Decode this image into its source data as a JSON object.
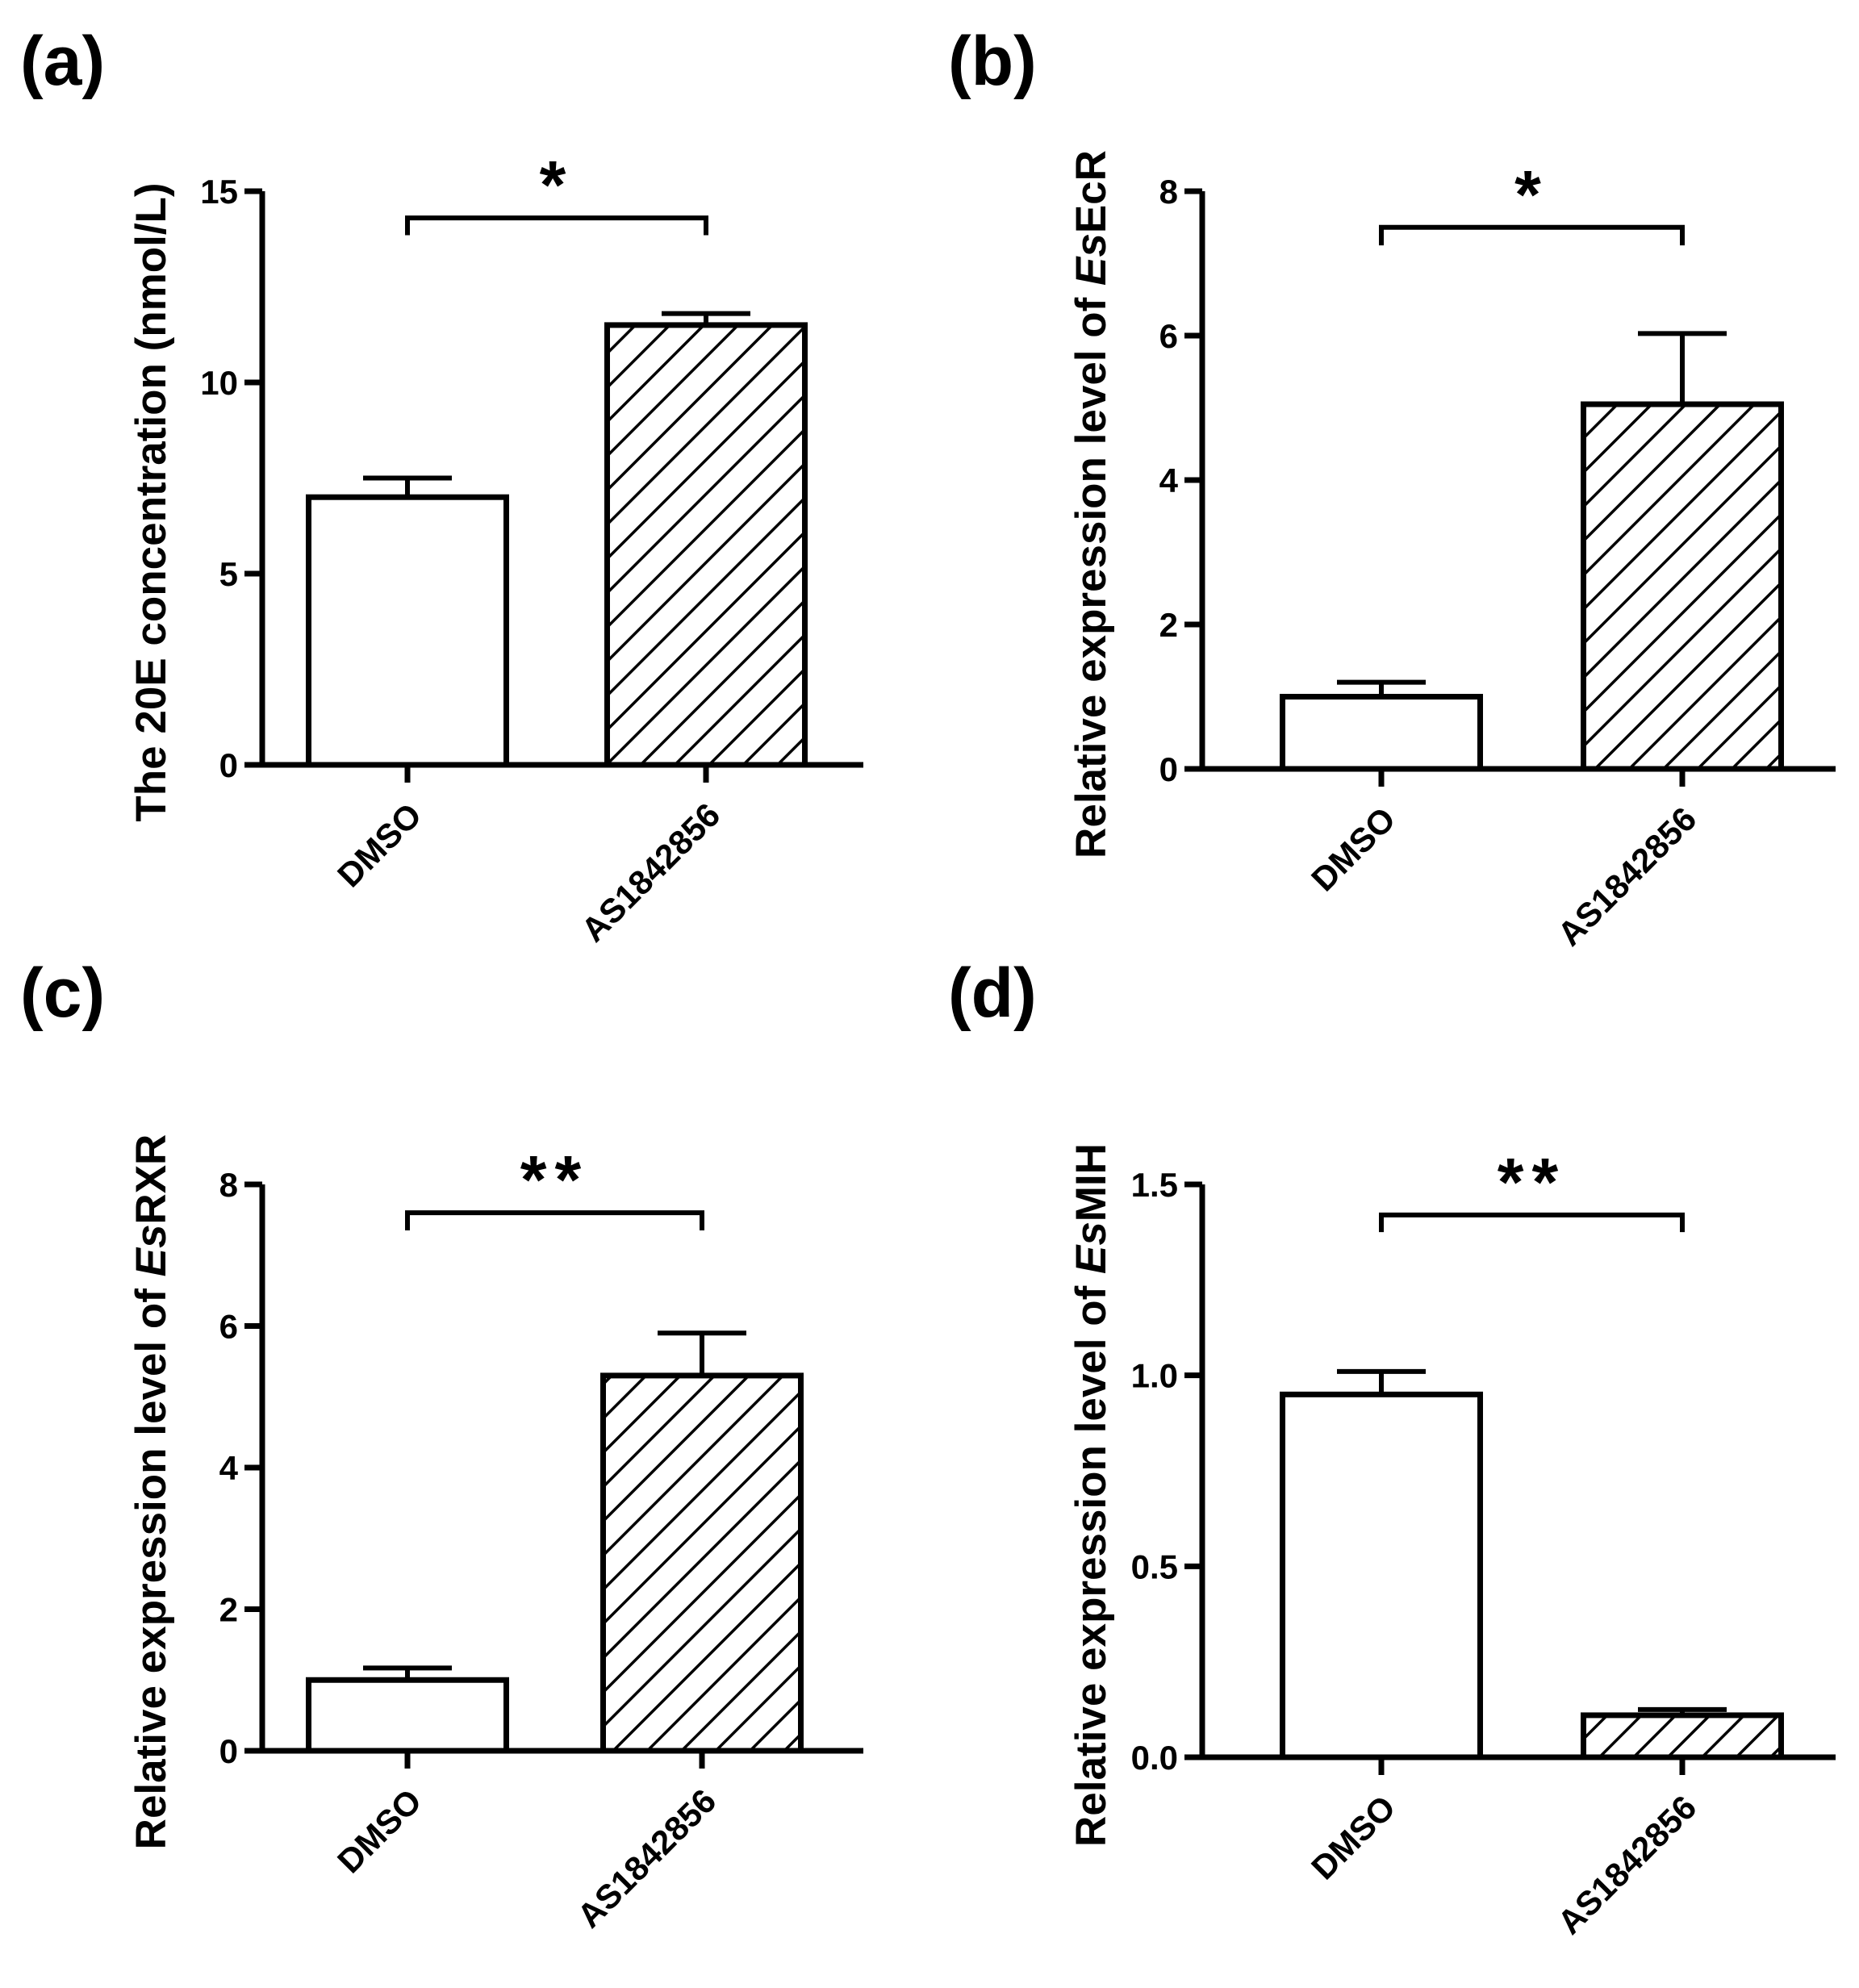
{
  "colors": {
    "ink": "#000000",
    "background": "#ffffff",
    "bar_fill": "#ffffff"
  },
  "chart_data": [
    {
      "type": "bar",
      "panel_label": "(a)",
      "ylabel": "The 20E concentration (nmol/L)",
      "categories": [
        "DMSO",
        "AS1842856"
      ],
      "values": [
        7.0,
        11.5
      ],
      "errors": [
        0.5,
        0.3
      ],
      "patterns": [
        "none",
        "hatch"
      ],
      "ylim": [
        0,
        15
      ],
      "yticks": [
        0,
        5,
        10,
        15
      ],
      "ytick_labels": [
        "0",
        "5",
        "10",
        "15"
      ],
      "significance": {
        "label": "*",
        "y": 14.3,
        "drop": 0.45
      }
    },
    {
      "type": "bar",
      "panel_label": "(b)",
      "ylabel_parts": [
        "Relative expression level of ",
        "Es",
        "EcR"
      ],
      "categories": [
        "DMSO",
        "AS1842856"
      ],
      "values": [
        1.0,
        5.05
      ],
      "errors": [
        0.2,
        0.98
      ],
      "patterns": [
        "none",
        "hatch"
      ],
      "ylim": [
        0,
        8
      ],
      "yticks": [
        0,
        2,
        4,
        6,
        8
      ],
      "ytick_labels": [
        "0",
        "2",
        "4",
        "6",
        "8"
      ],
      "significance": {
        "label": "*",
        "y": 7.5,
        "drop": 0.25
      }
    },
    {
      "type": "bar",
      "panel_label": "(c)",
      "ylabel_parts": [
        "Relative expression level of ",
        "Es",
        "RXR"
      ],
      "categories": [
        "DMSO",
        "AS1842856"
      ],
      "values": [
        1.0,
        5.3
      ],
      "errors": [
        0.17,
        0.6
      ],
      "patterns": [
        "none",
        "hatch"
      ],
      "ylim": [
        0,
        8
      ],
      "yticks": [
        0,
        2,
        4,
        6,
        8
      ],
      "ytick_labels": [
        "0",
        "2",
        "4",
        "6",
        "8"
      ],
      "significance": {
        "label": "**",
        "y": 7.6,
        "drop": 0.25
      }
    },
    {
      "type": "bar",
      "panel_label": "(d)",
      "ylabel_parts": [
        "Relative expression level of ",
        "Es",
        "MIH"
      ],
      "categories": [
        "DMSO",
        "AS1842856"
      ],
      "values": [
        0.95,
        0.11
      ],
      "errors": [
        0.06,
        0.015
      ],
      "patterns": [
        "none",
        "hatch"
      ],
      "ylim": [
        0,
        1.5
      ],
      "yticks": [
        0,
        0.5,
        1.0,
        1.5
      ],
      "ytick_labels": [
        "0.0",
        "0.5",
        "1.0",
        "1.5"
      ],
      "significance": {
        "label": "**",
        "y": 1.42,
        "drop": 0.045
      }
    }
  ]
}
